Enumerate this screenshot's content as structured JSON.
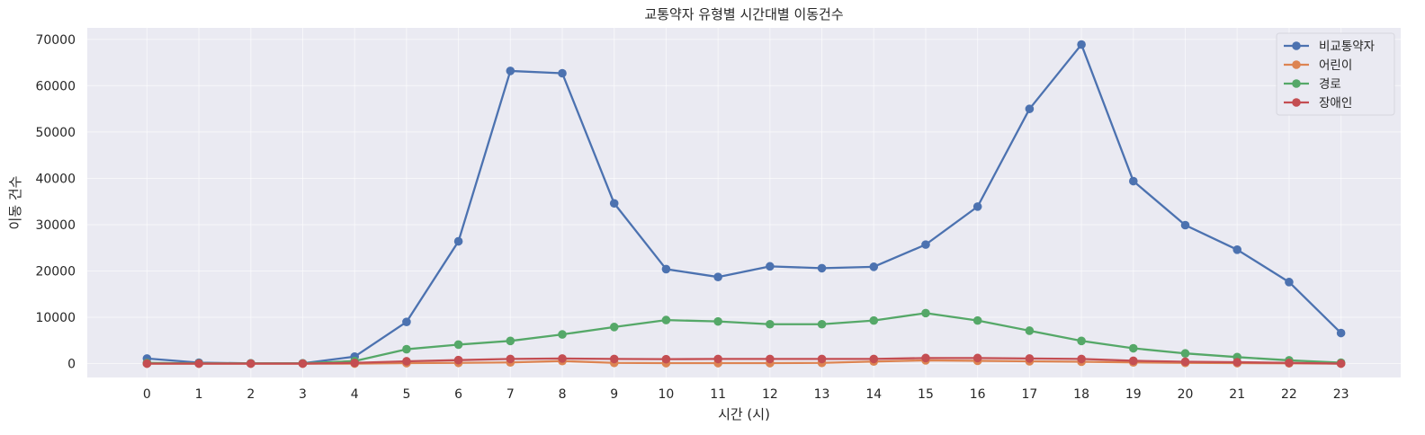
{
  "chart_data": {
    "type": "line",
    "title": "교통약자 유형별 시간대별 이동건수",
    "xlabel": "시간 (시)",
    "ylabel": "이동 건수",
    "x": [
      0,
      1,
      2,
      3,
      4,
      5,
      6,
      7,
      8,
      9,
      10,
      11,
      12,
      13,
      14,
      15,
      16,
      17,
      18,
      19,
      20,
      21,
      22,
      23
    ],
    "xticks": [
      "0",
      "1",
      "2",
      "3",
      "4",
      "5",
      "6",
      "7",
      "8",
      "9",
      "10",
      "11",
      "12",
      "13",
      "14",
      "15",
      "16",
      "17",
      "18",
      "19",
      "20",
      "21",
      "22",
      "23"
    ],
    "ylim": [
      -3000,
      72500
    ],
    "yticks": [
      0,
      10000,
      20000,
      30000,
      40000,
      50000,
      60000,
      70000
    ],
    "ytick_labels": [
      "0",
      "10000",
      "20000",
      "30000",
      "40000",
      "50000",
      "60000",
      "70000"
    ],
    "grid": true,
    "legend_position": "top-right",
    "series": [
      {
        "name": "비교통약자",
        "color": "#4c72b0",
        "values": [
          1100,
          200,
          50,
          50,
          1500,
          9000,
          26400,
          63200,
          62700,
          34600,
          20400,
          18700,
          21000,
          20600,
          20900,
          25700,
          33900,
          55000,
          68900,
          39400,
          29900,
          24600,
          17600,
          6600
        ]
      },
      {
        "name": "어린이",
        "color": "#dd8452",
        "values": [
          0,
          0,
          0,
          0,
          0,
          100,
          150,
          250,
          550,
          150,
          100,
          100,
          100,
          150,
          450,
          700,
          600,
          500,
          400,
          250,
          150,
          100,
          50,
          0
        ]
      },
      {
        "name": "경로",
        "color": "#55a868",
        "values": [
          150,
          50,
          50,
          50,
          550,
          3100,
          4100,
          4900,
          6300,
          7900,
          9400,
          9100,
          8500,
          8500,
          9300,
          10900,
          9300,
          7100,
          4900,
          3300,
          2200,
          1400,
          700,
          200
        ]
      },
      {
        "name": "장애인",
        "color": "#c44e52",
        "values": [
          0,
          0,
          0,
          0,
          150,
          500,
          750,
          1000,
          1100,
          1000,
          950,
          1000,
          1000,
          1000,
          1000,
          1200,
          1200,
          1100,
          1000,
          600,
          400,
          300,
          150,
          0
        ]
      }
    ]
  }
}
